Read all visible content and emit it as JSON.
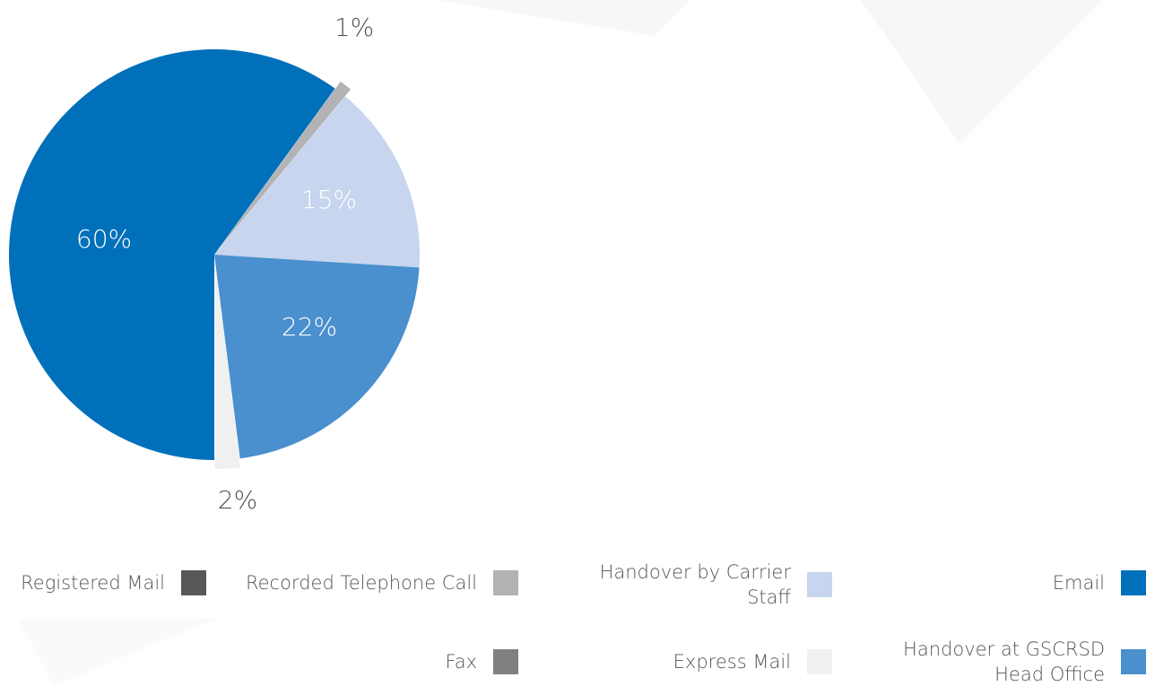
{
  "chart_data": {
    "type": "pie",
    "slices": [
      {
        "name": "Email",
        "value": 60,
        "label": "60%",
        "color": "#0070BA"
      },
      {
        "name": "Recorded Telephone Call",
        "value": 1,
        "label": "1%",
        "color": "#B3B3B5",
        "exploded": true
      },
      {
        "name": "Handover by Carrier Staff",
        "value": 15,
        "label": "15%",
        "color": "#C7D5EE"
      },
      {
        "name": "Handover at GSCRSD Head Office",
        "value": 22,
        "label": "22%",
        "color": "#4A8FCE"
      },
      {
        "name": "Express Mail",
        "value": 2,
        "label": "2%",
        "color": "#F0F0F0",
        "exploded": true
      },
      {
        "name": "Registered Mail",
        "value": 0,
        "label": "",
        "color": "#58585A"
      },
      {
        "name": "Fax",
        "value": 0,
        "label": "",
        "color": "#808083"
      }
    ],
    "label_colors": {
      "inside": "#FFFFFF",
      "outside": "#555555"
    }
  },
  "legend": {
    "registered_mail": {
      "label": "Registered Mail",
      "color": "#58585A"
    },
    "recorded_call": {
      "label": "Recorded Telephone Call",
      "color": "#B3B3B5"
    },
    "handover_carrier": {
      "label": "Handover by Carrier Staff",
      "color": "#C7D5EE"
    },
    "email": {
      "label": "Email",
      "color": "#0070BA"
    },
    "fax": {
      "label": "Fax",
      "color": "#808083"
    },
    "express_mail": {
      "label": "Express Mail",
      "color": "#F0F0F0"
    },
    "handover_office": {
      "label": "Handover at GSCRSD Head Office",
      "color": "#4A8FCE"
    }
  }
}
